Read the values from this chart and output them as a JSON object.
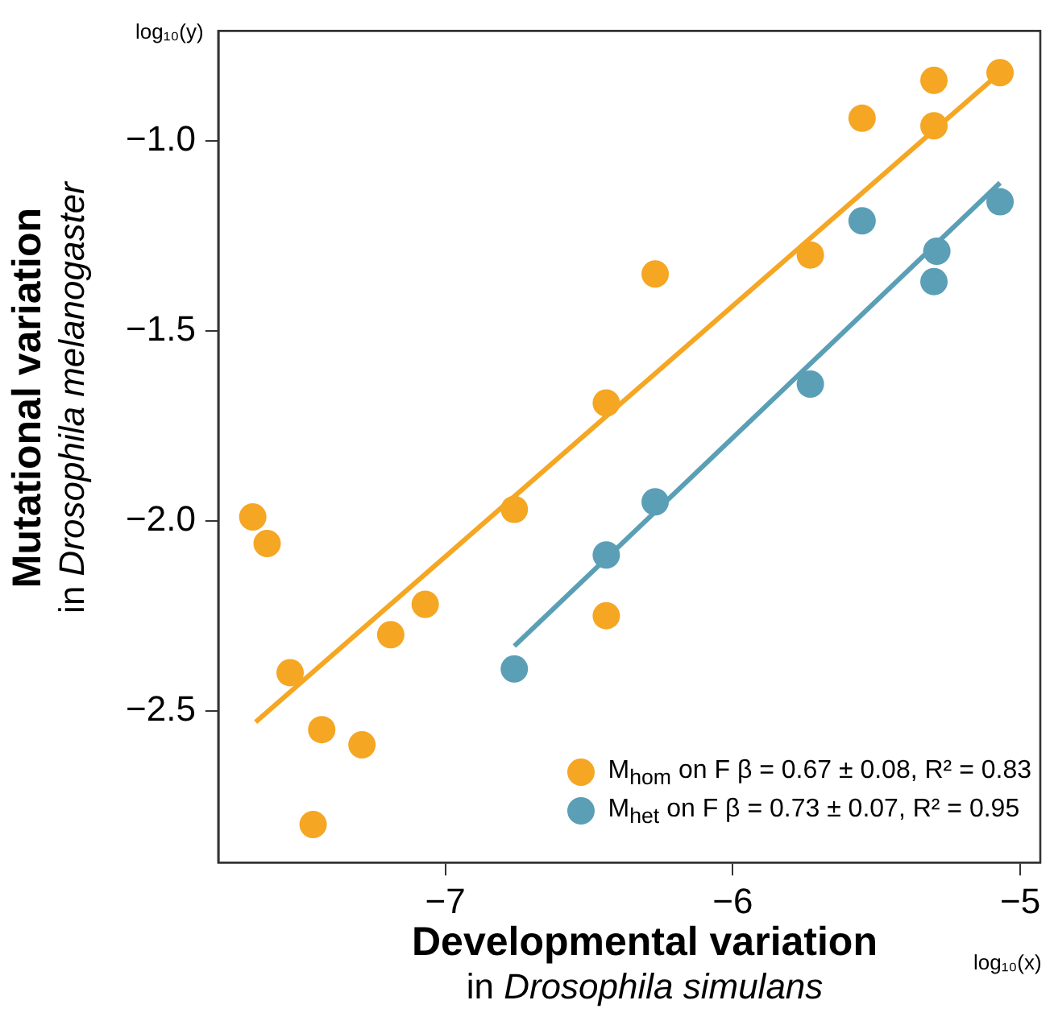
{
  "chart_data": {
    "type": "scatter",
    "xlabel": "Developmental variation\nin Drosophila simulans",
    "ylabel": "Mutational variation\nin Drosophila melanogaster",
    "annotations": [
      "log₁₀(y)",
      "log₁₀(x)"
    ],
    "xlim": [
      -7.79,
      -4.93
    ],
    "ylim": [
      -2.9,
      -0.71
    ],
    "xticks": [
      {
        "value": -7,
        "label": "−7"
      },
      {
        "value": -6,
        "label": "−6"
      },
      {
        "value": -5,
        "label": "−5"
      }
    ],
    "yticks": [
      {
        "value": -1.0,
        "label": "−1.0"
      },
      {
        "value": -1.5,
        "label": "−1.5"
      },
      {
        "value": -2.0,
        "label": "−2.0"
      },
      {
        "value": -2.5,
        "label": "−2.5"
      }
    ],
    "grid": false,
    "legend": "bottom right",
    "series": [
      {
        "marker": "circle",
        "name": "M$_{hom}$ on F  β = 0.67 ± 0.08, R² = 0.83",
        "color": "#f5a623",
        "x": [
          -7.67,
          -7.62,
          -7.54,
          -7.43,
          -7.29,
          -7.46,
          -7.19,
          -7.07,
          -6.76,
          -6.44,
          -6.44,
          -6.27,
          -5.73,
          -5.55,
          -5.3,
          -5.3,
          -5.07
        ],
        "values": [
          -1.99,
          -2.06,
          -2.4,
          -2.55,
          -2.59,
          -2.8,
          -2.3,
          -2.22,
          -1.97,
          -1.69,
          -2.25,
          -1.35,
          -1.3,
          -0.94,
          -0.96,
          -0.84,
          -0.82
        ]
      },
      {
        "marker": "circle",
        "name": "M$_{het}$ on F  β = 0.73 ± 0.07, R² = 0.95",
        "color": "#5a9fb5",
        "x": [
          -6.76,
          -6.44,
          -6.27,
          -5.73,
          -5.55,
          -5.29,
          -5.3,
          -5.07
        ],
        "values": [
          -2.39,
          -2.09,
          -1.95,
          -1.64,
          -1.21,
          -1.29,
          -1.37,
          -1.16
        ]
      },
      {
        "type": "line",
        "marker": "none",
        "color": "#f5a623",
        "x": [
          -7.66,
          -5.07
        ],
        "values": [
          -2.53,
          -0.82
        ]
      },
      {
        "type": "line",
        "marker": "none",
        "color": "#5a9fb5",
        "x": [
          -6.76,
          -5.07
        ],
        "values": [
          -2.33,
          -1.11
        ]
      }
    ]
  }
}
